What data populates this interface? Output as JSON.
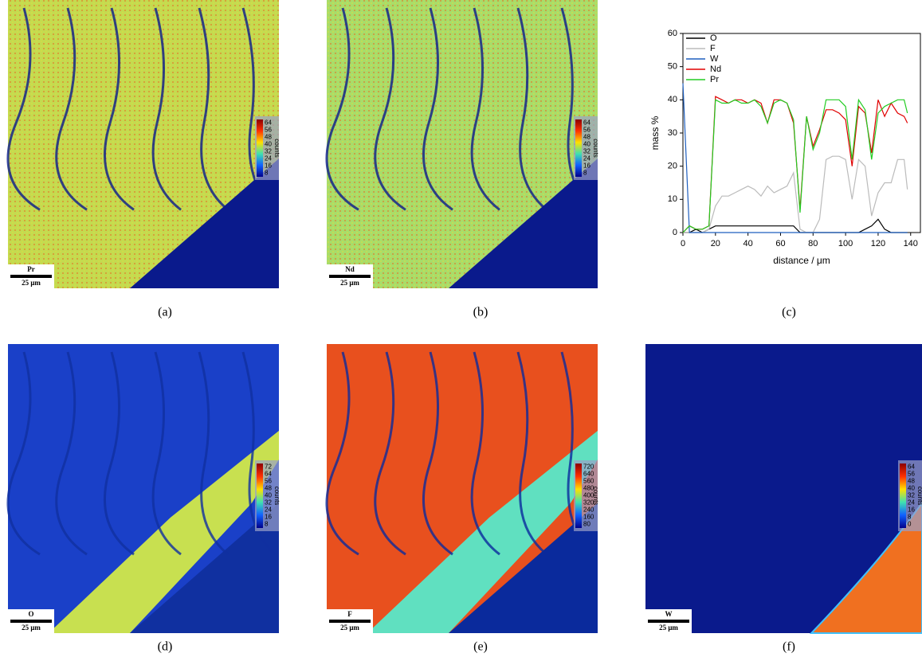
{
  "panel_labels": [
    "(a)",
    "(b)",
    "(c)",
    "(d)",
    "(e)",
    "(f)"
  ],
  "maps": [
    {
      "element": "Pr",
      "scale": "25 μm",
      "colorbar_ticks": [
        64,
        56,
        48,
        40,
        32,
        24,
        16,
        8
      ],
      "colorbar_unit": "counts"
    },
    {
      "element": "Nd",
      "scale": "25 μm",
      "colorbar_ticks": [
        64,
        56,
        48,
        40,
        32,
        24,
        16,
        8
      ],
      "colorbar_unit": "counts"
    },
    {
      "element": "O",
      "scale": "25 μm",
      "colorbar_ticks": [
        72,
        64,
        56,
        48,
        40,
        32,
        24,
        16,
        8
      ],
      "colorbar_unit": "counts"
    },
    {
      "element": "F",
      "scale": "25 μm",
      "colorbar_ticks": [
        720,
        640,
        560,
        480,
        400,
        320,
        240,
        160,
        80
      ],
      "colorbar_unit": "counts"
    },
    {
      "element": "W",
      "scale": "25 μm",
      "colorbar_ticks": [
        64,
        56,
        48,
        40,
        32,
        24,
        16,
        8,
        0
      ],
      "colorbar_unit": "counts"
    }
  ],
  "chart_data": {
    "type": "line",
    "x_label": "distance / μm",
    "y_label": "mass %",
    "x": [
      0,
      4,
      8,
      12,
      16,
      20,
      24,
      28,
      32,
      36,
      40,
      44,
      48,
      52,
      56,
      60,
      64,
      68,
      72,
      76,
      80,
      84,
      88,
      92,
      96,
      100,
      104,
      108,
      112,
      116,
      120,
      124,
      128,
      132,
      136,
      138
    ],
    "series": [
      {
        "name": "O",
        "color": "#000000",
        "values": [
          0,
          0,
          1,
          0,
          1,
          2,
          2,
          2,
          2,
          2,
          2,
          2,
          2,
          2,
          2,
          2,
          2,
          2,
          0,
          0,
          0,
          0,
          0,
          0,
          0,
          0,
          0,
          0,
          1,
          2,
          4,
          1,
          0,
          0,
          0,
          0
        ]
      },
      {
        "name": "F",
        "color": "#bbbbbb",
        "values": [
          0,
          0,
          0,
          0,
          1,
          8,
          11,
          11,
          12,
          13,
          14,
          13,
          11,
          14,
          12,
          13,
          14,
          18,
          1,
          0,
          0,
          4,
          22,
          23,
          23,
          22,
          10,
          22,
          20,
          5,
          12,
          15,
          15,
          22,
          22,
          13
        ]
      },
      {
        "name": "W",
        "color": "#1f5fbf",
        "values": [
          45,
          0,
          0,
          0,
          0,
          0,
          0,
          0,
          0,
          0,
          0,
          0,
          0,
          0,
          0,
          0,
          0,
          0,
          0,
          0,
          0,
          0,
          0,
          0,
          0,
          0,
          0,
          0,
          0,
          0,
          0,
          0,
          0,
          0,
          0,
          0
        ]
      },
      {
        "name": "Nd",
        "color": "#e00000",
        "values": [
          0,
          2,
          1,
          1,
          2,
          41,
          40,
          39,
          40,
          40,
          39,
          40,
          39,
          33,
          40,
          40,
          39,
          33,
          7,
          35,
          26,
          31,
          37,
          37,
          36,
          34,
          20,
          38,
          36,
          24,
          40,
          35,
          39,
          36,
          35,
          33
        ]
      },
      {
        "name": "Pr",
        "color": "#22cc22",
        "values": [
          0,
          2,
          1,
          1,
          2,
          40,
          39,
          39,
          40,
          39,
          39,
          40,
          38,
          33,
          39,
          40,
          39,
          34,
          6,
          35,
          25,
          30,
          40,
          40,
          40,
          38,
          22,
          40,
          37,
          22,
          36,
          38,
          39,
          40,
          40,
          36
        ]
      }
    ],
    "xlim": [
      0,
      146
    ],
    "ylim": [
      0,
      60
    ],
    "xticks": [
      0,
      20,
      40,
      60,
      80,
      100,
      120,
      140
    ],
    "yticks": [
      0,
      10,
      20,
      30,
      40,
      50,
      60
    ],
    "legend": "top-left"
  }
}
